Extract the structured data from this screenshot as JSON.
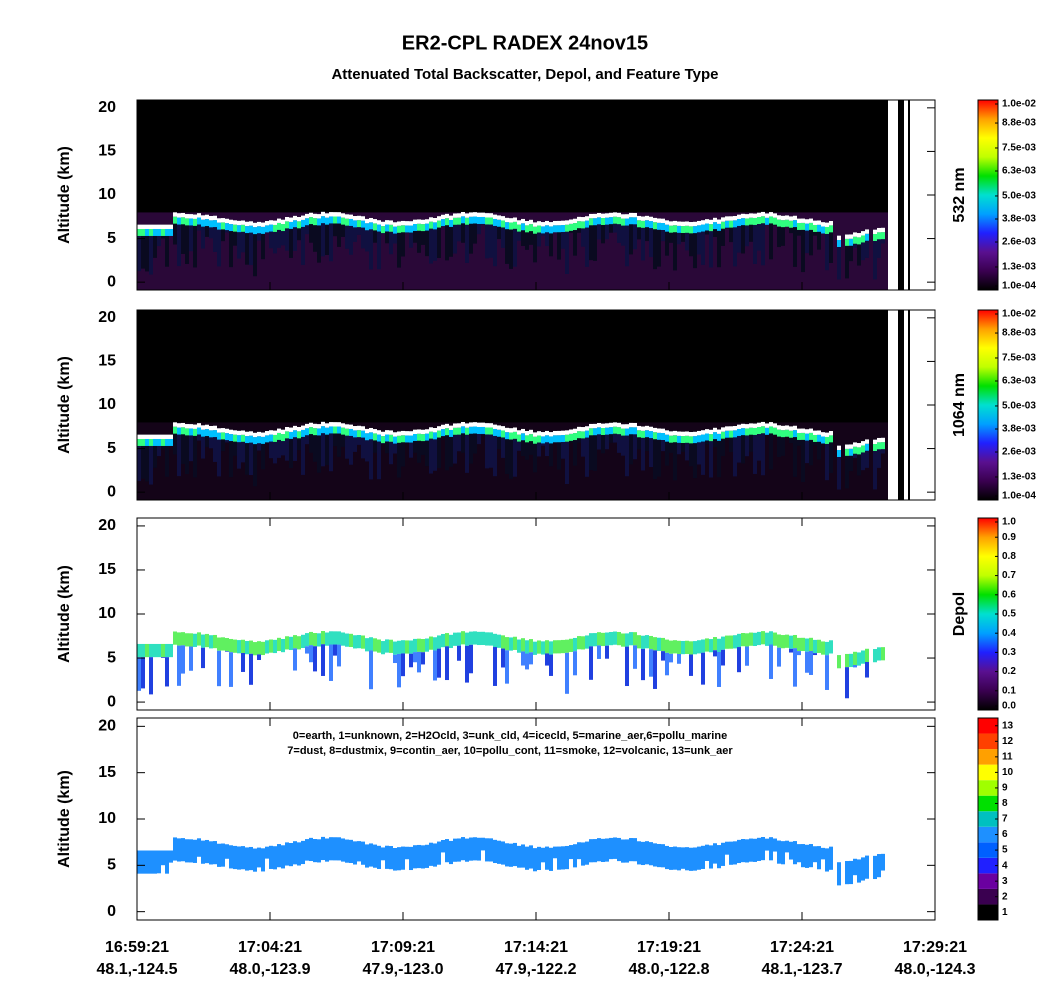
{
  "title": "ER2-CPL RADEX 24nov15",
  "subtitle": "Attenuated Total Backscatter, Depol, and Feature Type",
  "x_axis": {
    "ticks": [
      {
        "time": "16:59:21",
        "location": "48.1,-124.5"
      },
      {
        "time": "17:04:21",
        "location": "48.0,-123.9"
      },
      {
        "time": "17:09:21",
        "location": "47.9,-123.0"
      },
      {
        "time": "17:14:21",
        "location": "47.9,-122.2"
      },
      {
        "time": "17:19:21",
        "location": "48.0,-122.8"
      },
      {
        "time": "17:24:21",
        "location": "48.1,-123.7"
      },
      {
        "time": "17:29:21",
        "location": "48.0,-124.3"
      }
    ]
  },
  "chart_data": [
    {
      "type": "heatmap",
      "y_label": "Altitude (km)",
      "ylim": [
        -0.9,
        20.9
      ],
      "yticks": [
        0,
        5,
        10,
        15,
        20
      ],
      "background": "black",
      "colorbar": {
        "title": "532 nm",
        "colormap": "rainbow",
        "lim": [
          0.0001,
          0.01
        ],
        "ticks": [
          {
            "value": 0.0001,
            "label": "1.0e-04"
          },
          {
            "value": 0.0013,
            "label": "1.3e-03"
          },
          {
            "value": 0.0026,
            "label": "2.6e-03"
          },
          {
            "value": 0.0038,
            "label": "3.8e-03"
          },
          {
            "value": 0.005,
            "label": "5.0e-03"
          },
          {
            "value": 0.0063,
            "label": "6.3e-03"
          },
          {
            "value": 0.0075,
            "label": "7.5e-03"
          },
          {
            "value": 0.0088,
            "label": "8.8e-03"
          },
          {
            "value": 0.01,
            "label": "1.0e-02"
          }
        ]
      }
    },
    {
      "type": "heatmap",
      "y_label": "Altitude (km)",
      "ylim": [
        -0.9,
        20.9
      ],
      "yticks": [
        0,
        5,
        10,
        15,
        20
      ],
      "background": "black",
      "colorbar": {
        "title": "1064 nm",
        "colormap": "rainbow",
        "lim": [
          0.0001,
          0.01
        ],
        "ticks": [
          {
            "value": 0.0001,
            "label": "1.0e-04"
          },
          {
            "value": 0.0013,
            "label": "1.3e-03"
          },
          {
            "value": 0.0026,
            "label": "2.6e-03"
          },
          {
            "value": 0.0038,
            "label": "3.8e-03"
          },
          {
            "value": 0.005,
            "label": "5.0e-03"
          },
          {
            "value": 0.0063,
            "label": "6.3e-03"
          },
          {
            "value": 0.0075,
            "label": "7.5e-03"
          },
          {
            "value": 0.0088,
            "label": "8.8e-03"
          },
          {
            "value": 0.01,
            "label": "1.0e-02"
          }
        ]
      }
    },
    {
      "type": "heatmap",
      "y_label": "Altitude (km)",
      "ylim": [
        -0.9,
        20.9
      ],
      "yticks": [
        0,
        5,
        10,
        15,
        20
      ],
      "background": "white",
      "colorbar": {
        "title": "Depol",
        "colormap": "rainbow",
        "lim": [
          0,
          1
        ],
        "ticks": [
          {
            "value": 0,
            "label": "0.0"
          },
          0.1,
          0.2,
          0.3,
          0.4,
          0.5,
          0.6,
          0.7,
          0.8,
          0.9,
          {
            "value": 1,
            "label": "1.0"
          }
        ]
      }
    },
    {
      "type": "heatmap",
      "y_label": "Altitude (km)",
      "ylim": [
        -0.9,
        20.9
      ],
      "yticks": [
        0,
        5,
        10,
        15,
        20
      ],
      "background": "white",
      "legend_lines": [
        "0=earth, 1=unknown, 2=H2Ocld, 3=unk_cld, 4=icecld, 5=marine_aer,6=pollu_marine",
        "7=dust, 8=dustmix, 9=contin_aer, 10=pollu_cont, 11=smoke, 12=volcanic, 13=unk_aer"
      ],
      "colorbar": {
        "colormap": "discrete",
        "lim": [
          1,
          13
        ],
        "ticks": [
          1,
          2,
          3,
          4,
          5,
          6,
          7,
          8,
          9,
          10,
          11,
          12,
          13
        ]
      }
    }
  ]
}
